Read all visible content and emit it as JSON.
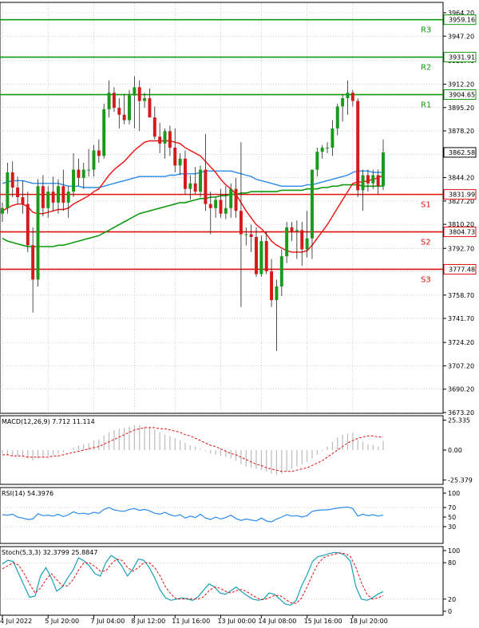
{
  "chart_data": {
    "type": "candlestick",
    "colors": {
      "up": "#1a9a1a",
      "down": "#d41a1a",
      "ma_fast": "#ee1111",
      "ma_mid": "#2a8be8",
      "ma_slow": "#119911",
      "resistance": "#119911",
      "support": "#dd1111",
      "macd_hist": "#bbbbbb",
      "macd_signal": "#dd1111",
      "rsi": "#2a8be8",
      "stoch_k": "#1aa0b8",
      "stoch_d": "#dd1111",
      "grid": "#b0b0b0",
      "price_tag_bg": "#ffffff"
    },
    "price_axis": {
      "ylim": [
        3673.2,
        3964.2
      ],
      "ticks": [
        "3964.20",
        "3947.20",
        "3929.40",
        "3912.20",
        "3895.20",
        "3878.20",
        "3861.20",
        "3844.20",
        "3827.20",
        "3810.20",
        "3792.70",
        "3775.70",
        "3758.70",
        "3741.70",
        "3724.20",
        "3707.20",
        "3690.20",
        "3673.20"
      ],
      "tick_values": [
        3964.2,
        3947.2,
        3929.4,
        3912.2,
        3895.2,
        3878.2,
        3861.2,
        3844.2,
        3827.2,
        3810.2,
        3792.7,
        3775.7,
        3758.7,
        3741.7,
        3724.2,
        3707.2,
        3690.2,
        3673.2
      ]
    },
    "levels": [
      {
        "label": "R3",
        "value": 3959.16,
        "tag": "3959.16",
        "kind": "resistance"
      },
      {
        "label": "R2",
        "value": 3931.91,
        "tag": "3931.91",
        "kind": "resistance"
      },
      {
        "label": "R1",
        "value": 3904.65,
        "tag": "3904.65",
        "kind": "resistance"
      },
      {
        "label": "S1",
        "value": 3831.99,
        "tag": "3831.99",
        "kind": "support"
      },
      {
        "label": "S2",
        "value": 3804.73,
        "tag": "3804.73",
        "kind": "support"
      },
      {
        "label": "S3",
        "value": 3777.48,
        "tag": "3777.48",
        "kind": "support"
      }
    ],
    "current_price": {
      "value": 3862.58,
      "tag": "3862.58"
    },
    "candles": [
      {
        "o": 3818,
        "h": 3826,
        "l": 3812,
        "c": 3822
      },
      {
        "o": 3822,
        "h": 3855,
        "l": 3818,
        "c": 3848
      },
      {
        "o": 3848,
        "h": 3856,
        "l": 3830,
        "c": 3837
      },
      {
        "o": 3837,
        "h": 3845,
        "l": 3825,
        "c": 3830
      },
      {
        "o": 3830,
        "h": 3842,
        "l": 3818,
        "c": 3825
      },
      {
        "o": 3825,
        "h": 3834,
        "l": 3790,
        "c": 3795
      },
      {
        "o": 3795,
        "h": 3808,
        "l": 3746,
        "c": 3770
      },
      {
        "o": 3770,
        "h": 3843,
        "l": 3765,
        "c": 3838
      },
      {
        "o": 3838,
        "h": 3846,
        "l": 3816,
        "c": 3822
      },
      {
        "o": 3822,
        "h": 3838,
        "l": 3815,
        "c": 3834
      },
      {
        "o": 3834,
        "h": 3845,
        "l": 3820,
        "c": 3826
      },
      {
        "o": 3826,
        "h": 3843,
        "l": 3818,
        "c": 3838
      },
      {
        "o": 3838,
        "h": 3850,
        "l": 3820,
        "c": 3826
      },
      {
        "o": 3826,
        "h": 3838,
        "l": 3815,
        "c": 3834
      },
      {
        "o": 3834,
        "h": 3862,
        "l": 3830,
        "c": 3850
      },
      {
        "o": 3850,
        "h": 3858,
        "l": 3838,
        "c": 3844
      },
      {
        "o": 3844,
        "h": 3855,
        "l": 3836,
        "c": 3850
      },
      {
        "o": 3850,
        "h": 3865,
        "l": 3845,
        "c": 3850
      },
      {
        "o": 3850,
        "h": 3868,
        "l": 3845,
        "c": 3864
      },
      {
        "o": 3864,
        "h": 3872,
        "l": 3855,
        "c": 3860
      },
      {
        "o": 3860,
        "h": 3898,
        "l": 3858,
        "c": 3894
      },
      {
        "o": 3894,
        "h": 3915,
        "l": 3888,
        "c": 3906
      },
      {
        "o": 3906,
        "h": 3910,
        "l": 3892,
        "c": 3895
      },
      {
        "o": 3895,
        "h": 3902,
        "l": 3880,
        "c": 3890
      },
      {
        "o": 3890,
        "h": 3905,
        "l": 3883,
        "c": 3886
      },
      {
        "o": 3886,
        "h": 3908,
        "l": 3883,
        "c": 3904
      },
      {
        "o": 3904,
        "h": 3918,
        "l": 3880,
        "c": 3910
      },
      {
        "o": 3910,
        "h": 3915,
        "l": 3878,
        "c": 3900
      },
      {
        "o": 3900,
        "h": 3906,
        "l": 3895,
        "c": 3902
      },
      {
        "o": 3902,
        "h": 3909,
        "l": 3888,
        "c": 3888
      },
      {
        "o": 3888,
        "h": 3896,
        "l": 3872,
        "c": 3874
      },
      {
        "o": 3874,
        "h": 3884,
        "l": 3862,
        "c": 3869
      },
      {
        "o": 3869,
        "h": 3880,
        "l": 3858,
        "c": 3878
      },
      {
        "o": 3878,
        "h": 3882,
        "l": 3860,
        "c": 3866
      },
      {
        "o": 3866,
        "h": 3880,
        "l": 3848,
        "c": 3853
      },
      {
        "o": 3853,
        "h": 3862,
        "l": 3846,
        "c": 3858
      },
      {
        "o": 3858,
        "h": 3864,
        "l": 3832,
        "c": 3836
      },
      {
        "o": 3836,
        "h": 3846,
        "l": 3828,
        "c": 3840
      },
      {
        "o": 3840,
        "h": 3852,
        "l": 3832,
        "c": 3834
      },
      {
        "o": 3834,
        "h": 3853,
        "l": 3830,
        "c": 3850
      },
      {
        "o": 3850,
        "h": 3876,
        "l": 3820,
        "c": 3825
      },
      {
        "o": 3825,
        "h": 3834,
        "l": 3803,
        "c": 3822
      },
      {
        "o": 3822,
        "h": 3830,
        "l": 3815,
        "c": 3828
      },
      {
        "o": 3828,
        "h": 3836,
        "l": 3815,
        "c": 3818
      },
      {
        "o": 3818,
        "h": 3838,
        "l": 3814,
        "c": 3822
      },
      {
        "o": 3822,
        "h": 3840,
        "l": 3815,
        "c": 3836
      },
      {
        "o": 3836,
        "h": 3844,
        "l": 3815,
        "c": 3820
      },
      {
        "o": 3820,
        "h": 3870,
        "l": 3750,
        "c": 3803
      },
      {
        "o": 3803,
        "h": 3808,
        "l": 3795,
        "c": 3803
      },
      {
        "o": 3803,
        "h": 3810,
        "l": 3790,
        "c": 3801
      },
      {
        "o": 3801,
        "h": 3808,
        "l": 3772,
        "c": 3774
      },
      {
        "o": 3774,
        "h": 3802,
        "l": 3772,
        "c": 3798
      },
      {
        "o": 3798,
        "h": 3805,
        "l": 3774,
        "c": 3776
      },
      {
        "o": 3776,
        "h": 3785,
        "l": 3750,
        "c": 3755
      },
      {
        "o": 3755,
        "h": 3770,
        "l": 3718,
        "c": 3765
      },
      {
        "o": 3765,
        "h": 3792,
        "l": 3758,
        "c": 3787
      },
      {
        "o": 3787,
        "h": 3812,
        "l": 3782,
        "c": 3808
      },
      {
        "o": 3808,
        "h": 3812,
        "l": 3798,
        "c": 3805
      },
      {
        "o": 3805,
        "h": 3813,
        "l": 3785,
        "c": 3806
      },
      {
        "o": 3806,
        "h": 3812,
        "l": 3780,
        "c": 3792
      },
      {
        "o": 3792,
        "h": 3820,
        "l": 3786,
        "c": 3800
      },
      {
        "o": 3800,
        "h": 3850,
        "l": 3785,
        "c": 3850
      },
      {
        "o": 3850,
        "h": 3866,
        "l": 3845,
        "c": 3863
      },
      {
        "o": 3863,
        "h": 3868,
        "l": 3858,
        "c": 3866
      },
      {
        "o": 3866,
        "h": 3870,
        "l": 3862,
        "c": 3866
      },
      {
        "o": 3866,
        "h": 3886,
        "l": 3860,
        "c": 3880
      },
      {
        "o": 3880,
        "h": 3898,
        "l": 3875,
        "c": 3896
      },
      {
        "o": 3896,
        "h": 3905,
        "l": 3885,
        "c": 3902
      },
      {
        "o": 3902,
        "h": 3915,
        "l": 3890,
        "c": 3906
      },
      {
        "o": 3906,
        "h": 3908,
        "l": 3896,
        "c": 3900
      },
      {
        "o": 3900,
        "h": 3902,
        "l": 3830,
        "c": 3835
      },
      {
        "o": 3835,
        "h": 3850,
        "l": 3820,
        "c": 3846
      },
      {
        "o": 3846,
        "h": 3850,
        "l": 3834,
        "c": 3840
      },
      {
        "o": 3840,
        "h": 3850,
        "l": 3836,
        "c": 3846
      },
      {
        "o": 3846,
        "h": 3850,
        "l": 3832,
        "c": 3838
      },
      {
        "o": 3838,
        "h": 3872,
        "l": 3835,
        "c": 3862.58
      }
    ],
    "ma_fast": [
      3820,
      3822,
      3824,
      3825,
      3825,
      3823,
      3819,
      3818,
      3818,
      3819,
      3820,
      3821,
      3821,
      3822,
      3825,
      3827,
      3829,
      3831,
      3834,
      3836,
      3841,
      3846,
      3850,
      3853,
      3856,
      3860,
      3864,
      3867,
      3870,
      3871,
      3871,
      3871,
      3871,
      3871,
      3870,
      3869,
      3866,
      3864,
      3862,
      3860,
      3856,
      3852,
      3848,
      3843,
      3839,
      3836,
      3832,
      3826,
      3820,
      3815,
      3810,
      3807,
      3803,
      3798,
      3795,
      3793,
      3791,
      3790,
      3790,
      3790,
      3791,
      3795,
      3800,
      3805,
      3810,
      3816,
      3822,
      3828,
      3834,
      3840,
      3841,
      3841,
      3842,
      3843,
      3844,
      3846
    ],
    "ma_mid": [
      3840,
      3841,
      3842,
      3842,
      3842,
      3841,
      3840,
      3840,
      3840,
      3840,
      3840,
      3840,
      3839,
      3838,
      3838,
      3838,
      3837,
      3837,
      3837,
      3837,
      3838,
      3839,
      3840,
      3841,
      3842,
      3843,
      3844,
      3845,
      3845,
      3845,
      3845,
      3845,
      3845,
      3846,
      3846,
      3847,
      3847,
      3847,
      3847,
      3848,
      3849,
      3849,
      3849,
      3849,
      3849,
      3849,
      3848,
      3847,
      3846,
      3845,
      3843,
      3842,
      3841,
      3840,
      3839,
      3838,
      3838,
      3838,
      3838,
      3838,
      3839,
      3839,
      3840,
      3841,
      3842,
      3843,
      3844,
      3845,
      3846,
      3848,
      3849,
      3849,
      3849,
      3848,
      3848,
      3848
    ],
    "ma_slow": [
      3800,
      3798,
      3797,
      3796,
      3795,
      3794,
      3794,
      3794,
      3794,
      3794,
      3794,
      3795,
      3795,
      3796,
      3797,
      3798,
      3799,
      3800,
      3801,
      3802,
      3804,
      3806,
      3808,
      3810,
      3812,
      3814,
      3816,
      3818,
      3819,
      3820,
      3821,
      3822,
      3823,
      3824,
      3825,
      3826,
      3826,
      3827,
      3828,
      3829,
      3829,
      3830,
      3830,
      3831,
      3831,
      3832,
      3832,
      3833,
      3833,
      3834,
      3834,
      3834,
      3834,
      3834,
      3834,
      3835,
      3835,
      3835,
      3835,
      3835,
      3836,
      3836,
      3836,
      3837,
      3837,
      3838,
      3838,
      3839,
      3839,
      3839,
      3839,
      3838,
      3838,
      3838,
      3838,
      3838
    ],
    "macd": {
      "label": "MACD(12,26,9) 7.712 11.114",
      "ticks": [
        "25.335",
        "0.00",
        "-25.379"
      ],
      "tick_values": [
        25.335,
        0,
        -25.379
      ],
      "ylim": [
        -27,
        27
      ],
      "hist": [
        -3,
        -4,
        -5,
        -5,
        -6,
        -7,
        -9,
        -7,
        -6,
        -5,
        -4,
        -3,
        -2,
        0,
        2,
        4,
        5,
        6,
        8,
        9,
        12,
        15,
        17,
        18,
        19,
        20,
        21,
        21,
        20,
        19,
        17,
        15,
        13,
        12,
        10,
        8,
        6,
        4,
        3,
        1,
        -1,
        -3,
        -4,
        -5,
        -6,
        -7,
        -9,
        -12,
        -14,
        -15,
        -16,
        -17,
        -18,
        -20,
        -21,
        -20,
        -18,
        -16,
        -14,
        -12,
        -10,
        -7,
        -4,
        -1,
        3,
        7,
        11,
        13,
        14,
        15,
        9,
        7,
        5,
        4,
        3,
        7.7
      ],
      "signal": [
        -4,
        -4,
        -5,
        -5,
        -5,
        -6,
        -6,
        -6,
        -6,
        -6,
        -5,
        -5,
        -4,
        -3,
        -2,
        -1,
        0,
        1,
        2,
        3,
        5,
        7,
        9,
        11,
        13,
        15,
        17,
        18,
        19,
        19,
        19,
        18,
        18,
        17,
        16,
        15,
        13,
        12,
        10,
        8,
        6,
        4,
        3,
        1,
        -1,
        -3,
        -4,
        -6,
        -8,
        -10,
        -12,
        -13,
        -15,
        -16,
        -17,
        -18,
        -18,
        -18,
        -17,
        -16,
        -15,
        -13,
        -11,
        -9,
        -6,
        -3,
        0,
        3,
        6,
        8,
        10,
        11,
        12,
        12,
        11,
        11.1
      ]
    },
    "rsi": {
      "label": "RSI(14) 54.3976",
      "ticks": [
        "100",
        "70",
        "50",
        "30"
      ],
      "tick_values": [
        100,
        70,
        50,
        30
      ],
      "ylim": [
        0,
        100
      ],
      "values": [
        55,
        54,
        56,
        50,
        48,
        45,
        46,
        57,
        53,
        54,
        52,
        56,
        51,
        55,
        61,
        57,
        58,
        56,
        60,
        58,
        66,
        70,
        65,
        63,
        62,
        66,
        68,
        64,
        66,
        63,
        58,
        56,
        60,
        55,
        52,
        55,
        48,
        52,
        49,
        56,
        48,
        45,
        50,
        46,
        49,
        54,
        47,
        43,
        46,
        44,
        42,
        48,
        42,
        40,
        46,
        50,
        55,
        52,
        53,
        50,
        53,
        62,
        64,
        65,
        65,
        67,
        69,
        70,
        71,
        68,
        52,
        56,
        53,
        55,
        52,
        54.4
      ]
    },
    "stoch": {
      "label": "Stoch(5,3,3) 32.3799 25.8847",
      "ticks": [
        "100",
        "80",
        "20",
        "0"
      ],
      "tick_values": [
        100,
        80,
        20,
        0
      ],
      "ylim": [
        0,
        100
      ],
      "k": [
        78,
        84,
        82,
        62,
        42,
        23,
        25,
        58,
        72,
        55,
        33,
        40,
        55,
        68,
        88,
        83,
        75,
        62,
        58,
        80,
        92,
        86,
        74,
        58,
        70,
        86,
        84,
        72,
        55,
        35,
        22,
        18,
        20,
        22,
        20,
        18,
        24,
        35,
        45,
        40,
        30,
        28,
        34,
        40,
        32,
        26,
        20,
        18,
        20,
        30,
        28,
        20,
        12,
        10,
        18,
        42,
        60,
        82,
        90,
        92,
        95,
        97,
        96,
        92,
        82,
        40,
        20,
        18,
        22,
        28,
        32.4
      ],
      "d": [
        70,
        75,
        80,
        76,
        62,
        45,
        30,
        38,
        52,
        62,
        52,
        42,
        42,
        52,
        68,
        80,
        80,
        74,
        66,
        66,
        78,
        86,
        84,
        72,
        66,
        72,
        80,
        80,
        72,
        58,
        40,
        28,
        20,
        20,
        21,
        20,
        20,
        24,
        34,
        40,
        38,
        33,
        30,
        34,
        36,
        32,
        26,
        21,
        19,
        22,
        26,
        26,
        20,
        14,
        13,
        22,
        40,
        60,
        78,
        88,
        92,
        94,
        96,
        95,
        90,
        72,
        47,
        28,
        20,
        22,
        25.9
      ]
    },
    "x_labels": [
      "4 Jul 2022",
      "5 Jul 20:00",
      "7 Jul 04:00",
      "8 Jul 12:00",
      "11 Jul 16:00",
      "13 Jul 00:00",
      "14 Jul 08:00",
      "15 Jul 16:00",
      "18 Jul 20:00"
    ],
    "x_label_index": [
      0,
      9,
      18,
      26,
      34,
      43,
      51,
      60,
      69
    ]
  }
}
